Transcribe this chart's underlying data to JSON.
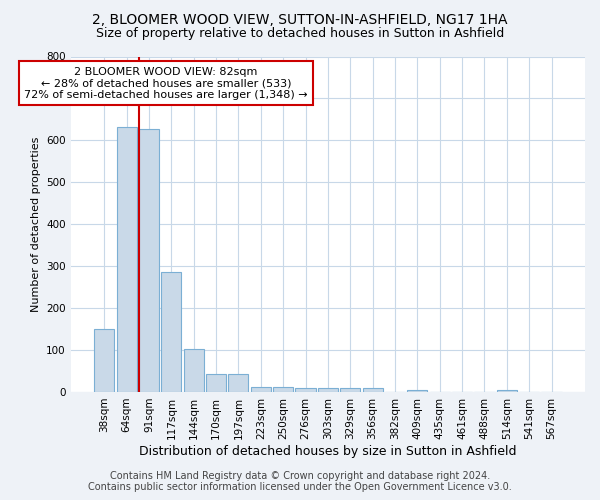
{
  "title": "2, BLOOMER WOOD VIEW, SUTTON-IN-ASHFIELD, NG17 1HA",
  "subtitle": "Size of property relative to detached houses in Sutton in Ashfield",
  "xlabel": "Distribution of detached houses by size in Sutton in Ashfield",
  "ylabel": "Number of detached properties",
  "categories": [
    "38sqm",
    "64sqm",
    "91sqm",
    "117sqm",
    "144sqm",
    "170sqm",
    "197sqm",
    "223sqm",
    "250sqm",
    "276sqm",
    "303sqm",
    "329sqm",
    "356sqm",
    "382sqm",
    "409sqm",
    "435sqm",
    "461sqm",
    "488sqm",
    "514sqm",
    "541sqm",
    "567sqm"
  ],
  "values": [
    150,
    633,
    627,
    285,
    102,
    43,
    43,
    13,
    12,
    10,
    10,
    10,
    10,
    0,
    5,
    0,
    0,
    0,
    5,
    0,
    0
  ],
  "bar_color": "#c9d9e8",
  "bar_edgecolor": "#7bafd4",
  "vline_color": "#cc0000",
  "vline_x_index": 1.55,
  "annotation_text": "2 BLOOMER WOOD VIEW: 82sqm\n← 28% of detached houses are smaller (533)\n72% of semi-detached houses are larger (1,348) →",
  "annotation_box_color": "white",
  "annotation_box_edgecolor": "#cc0000",
  "ylim": [
    0,
    800
  ],
  "yticks": [
    0,
    100,
    200,
    300,
    400,
    500,
    600,
    700,
    800
  ],
  "footer1": "Contains HM Land Registry data © Crown copyright and database right 2024.",
  "footer2": "Contains public sector information licensed under the Open Government Licence v3.0.",
  "bg_color": "#eef2f7",
  "plot_bg_color": "#ffffff",
  "grid_color": "#c8d8e8",
  "title_fontsize": 10,
  "subtitle_fontsize": 9,
  "xlabel_fontsize": 9,
  "ylabel_fontsize": 8,
  "tick_fontsize": 7.5,
  "annotation_fontsize": 8,
  "footer_fontsize": 7
}
